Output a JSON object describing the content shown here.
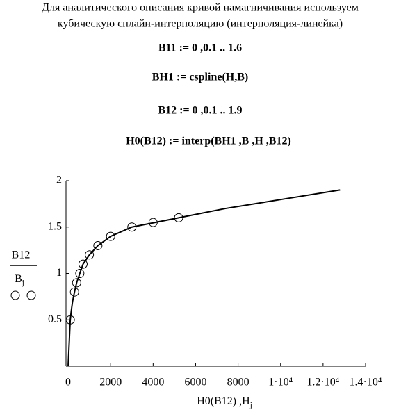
{
  "header": {
    "lines": [
      "Для аналитического описания кривой намагничивания используем",
      "кубическую сплайн-интерполяцию (интерполяция-линейка)"
    ]
  },
  "formulas": [
    "B11 := 0 ,0.1 .. 1.6",
    "BH1 := cspline(H,B)",
    "B12 := 0 ,0.1 .. 1.9",
    "H0(B12) := interp(BH1 ,B ,H ,B12)"
  ],
  "chart_data": {
    "type": "line",
    "x_label": "H0(B12) ,H",
    "x_label_sub": "j",
    "y_label_top": "B12",
    "y_label_bottom": "B",
    "y_label_bottom_sub": "j",
    "xlim": [
      -100,
      14000
    ],
    "ylim": [
      0,
      2
    ],
    "xticks": [
      0,
      2000,
      4000,
      6000,
      8000,
      {
        "value": 10000,
        "label": "1·10⁴"
      },
      {
        "value": 12000,
        "label": "1.2·10⁴"
      },
      {
        "value": 14000,
        "label": "1.4·10⁴"
      }
    ],
    "yticks": [
      0.5,
      1,
      1.5,
      2
    ],
    "series": [
      {
        "style": "line",
        "color": "#000000",
        "x": [
          0,
          20,
          40,
          60,
          80,
          100,
          150,
          210,
          300,
          400,
          550,
          700,
          1000,
          1400,
          2000,
          3000,
          5200,
          7400,
          10100,
          12800
        ],
        "values": [
          0,
          0.1,
          0.2,
          0.3,
          0.4,
          0.5,
          0.6,
          0.7,
          0.8,
          0.9,
          1.0,
          1.1,
          1.2,
          1.3,
          1.4,
          1.5,
          1.6,
          1.7,
          1.8,
          1.9
        ]
      },
      {
        "style": "circle",
        "color": "#000000",
        "x": [
          100,
          300,
          400,
          550,
          700,
          1000,
          1400,
          2000,
          3000,
          4000,
          5200
        ],
        "values": [
          0.5,
          0.8,
          0.9,
          1.0,
          1.1,
          1.2,
          1.3,
          1.4,
          1.5,
          1.55,
          1.6
        ]
      }
    ]
  }
}
